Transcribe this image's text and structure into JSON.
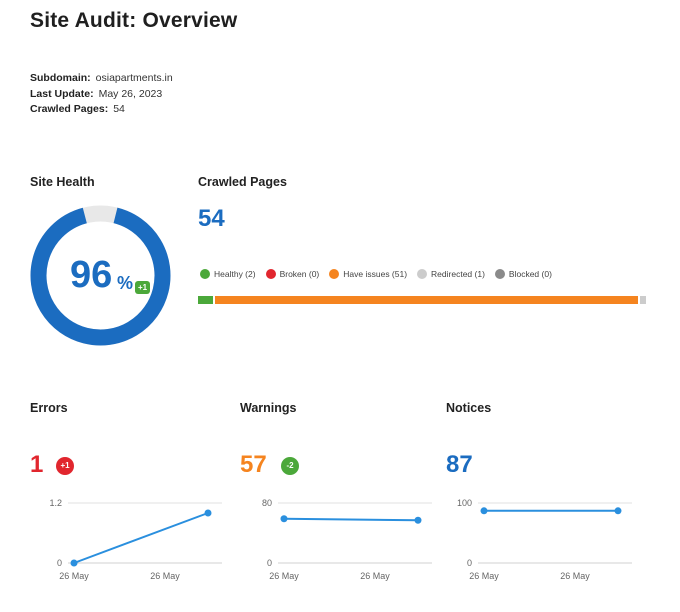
{
  "header": {
    "title": "Site Audit: Overview"
  },
  "meta": {
    "subdomain_label": "Subdomain:",
    "subdomain_value": "osiapartments.in",
    "update_label": "Last Update:",
    "update_value": "May 26, 2023",
    "crawled_label": "Crawled Pages:",
    "crawled_value": "54"
  },
  "health": {
    "title": "Site Health",
    "value": "96",
    "unit": "%",
    "delta": "+1",
    "fraction": 0.96,
    "color": "#1b6cc0",
    "track_color": "#e8e8e8"
  },
  "crawled": {
    "title": "Crawled Pages",
    "total": "54",
    "legend": [
      {
        "label": "Healthy (2)",
        "color": "#4ba83a",
        "count": 2
      },
      {
        "label": "Broken (0)",
        "color": "#e1262e",
        "count": 0
      },
      {
        "label": "Have issues (51)",
        "color": "#f5841f",
        "count": 51
      },
      {
        "label": "Redirected (1)",
        "color": "#cccccc",
        "count": 1
      },
      {
        "label": "Blocked (0)",
        "color": "#8a8a8a",
        "count": 0
      }
    ]
  },
  "errors": {
    "title": "Errors",
    "value": "1",
    "delta": "+1",
    "color": "#e1262e"
  },
  "warnings": {
    "title": "Warnings",
    "value": "57",
    "delta": "-2",
    "color": "#f5841f"
  },
  "notices": {
    "title": "Notices",
    "value": "87",
    "color": "#1b6cc0"
  },
  "chart_data": [
    {
      "type": "line",
      "name": "errors",
      "x": [
        "26 May",
        "26 May"
      ],
      "values": [
        0,
        1
      ],
      "ylim": [
        0,
        1.2
      ],
      "yticks": [
        "1.2",
        "0"
      ],
      "color": "#2a8fde"
    },
    {
      "type": "line",
      "name": "warnings",
      "x": [
        "26 May",
        "26 May"
      ],
      "values": [
        59,
        57
      ],
      "ylim": [
        0,
        80
      ],
      "yticks": [
        "80",
        "0"
      ],
      "color": "#2a8fde"
    },
    {
      "type": "line",
      "name": "notices",
      "x": [
        "26 May",
        "26 May"
      ],
      "values": [
        87,
        87
      ],
      "ylim": [
        0,
        100
      ],
      "yticks": [
        "100",
        "0"
      ],
      "color": "#2a8fde"
    }
  ]
}
